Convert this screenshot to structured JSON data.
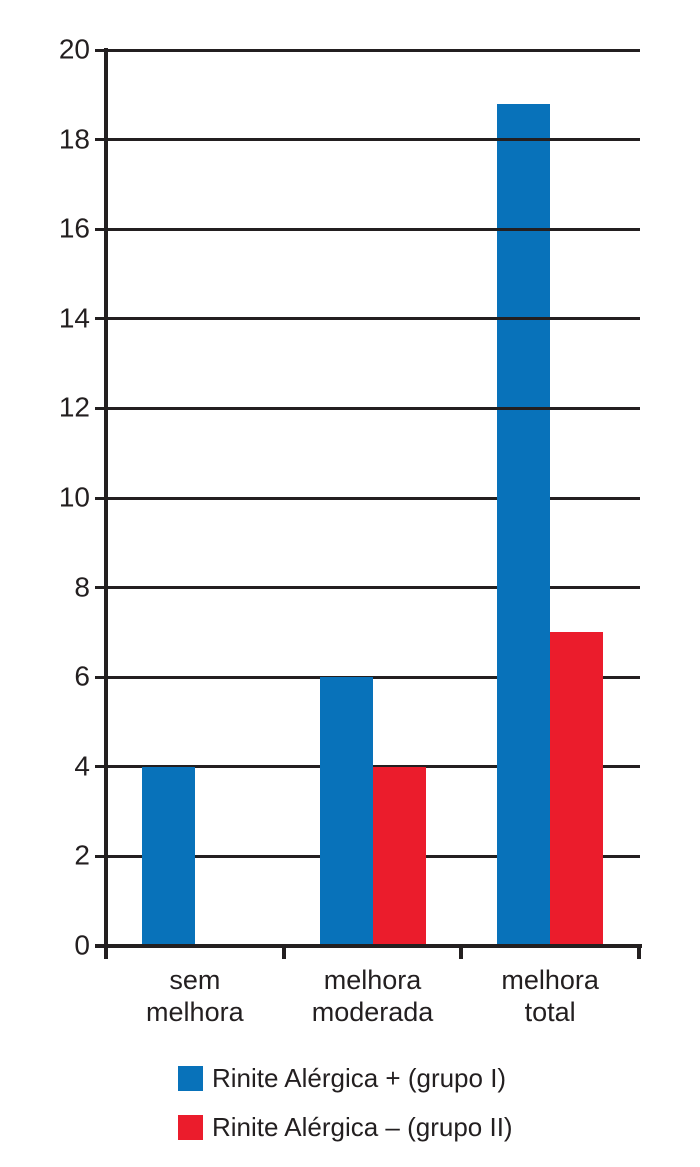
{
  "chart_data": {
    "type": "bar",
    "title": "",
    "xlabel": "",
    "ylabel": "",
    "categories": [
      "sem melhora",
      "melhora moderada",
      "melhora total"
    ],
    "series": [
      {
        "name": "Rinite Alérgica + (grupo I)",
        "color": "#0872BA",
        "values": [
          4,
          6,
          18.8
        ]
      },
      {
        "name": "Rinite Alérgica – (grupo II)",
        "color": "#EB1C2C",
        "values": [
          0,
          4,
          7
        ]
      }
    ],
    "ylim": [
      0,
      20
    ],
    "ytick_step": 2,
    "yticks": [
      0,
      2,
      4,
      6,
      8,
      10,
      12,
      14,
      16,
      18,
      20
    ],
    "grid": true,
    "gridlines_over_tall_bar_from": 12,
    "legend_position": "bottom",
    "axis_color": "#231F20",
    "text_color": "#231F20",
    "background": "#FFFFFF"
  }
}
